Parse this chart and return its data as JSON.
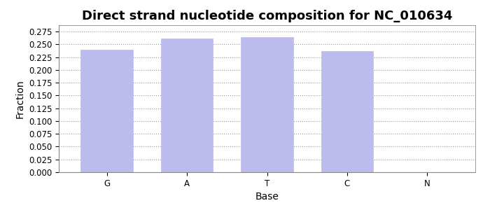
{
  "title": "Direct strand nucleotide composition for NC_010634",
  "categories": [
    "G",
    "A",
    "T",
    "C",
    "N"
  ],
  "values": [
    0.24,
    0.262,
    0.264,
    0.237,
    0.0
  ],
  "bar_color": "#bbbbee",
  "bar_edgecolor": "#bbbbee",
  "xlabel": "Base",
  "ylabel": "Fraction",
  "ylim": [
    0.0,
    0.2875
  ],
  "yticks": [
    0.0,
    0.025,
    0.05,
    0.075,
    0.1,
    0.125,
    0.15,
    0.175,
    0.2,
    0.225,
    0.25,
    0.275
  ],
  "title_fontsize": 13,
  "axis_label_fontsize": 10,
  "tick_fontsize": 8.5,
  "grid_color": "#999999",
  "background_color": "#ffffff",
  "bar_width": 0.65
}
